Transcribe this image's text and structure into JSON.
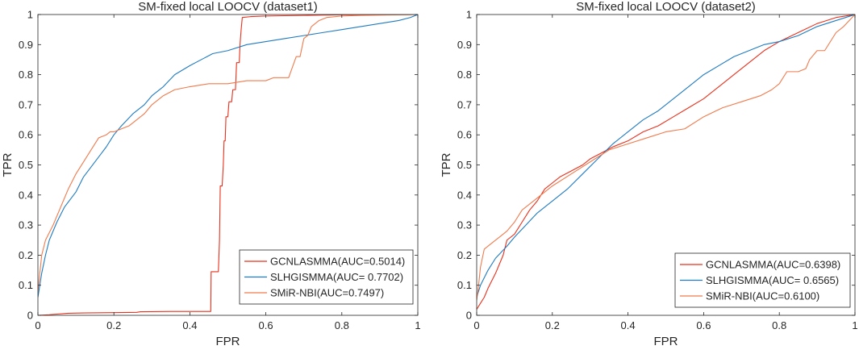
{
  "chart_data": [
    {
      "type": "line",
      "title": "SM-fixed local LOOCV (dataset1)",
      "xlabel": "FPR",
      "ylabel": "TPR",
      "xlim": [
        0,
        1
      ],
      "ylim": [
        0,
        1
      ],
      "x_ticks": [
        "0",
        "0.2",
        "0.4",
        "0.6",
        "0.8",
        "1"
      ],
      "y_ticks": [
        "0",
        "0.1",
        "0.2",
        "0.3",
        "0.4",
        "0.5",
        "0.6",
        "0.7",
        "0.8",
        "0.9",
        "1"
      ],
      "legend_position": "bottom-right",
      "series": [
        {
          "name": "GCNLASMMA(AUC=0.5014)",
          "color": "#e8301c",
          "x": [
            0,
            0.03,
            0.05,
            0.08,
            0.12,
            0.2,
            0.26,
            0.27,
            0.35,
            0.44,
            0.455,
            0.456,
            0.475,
            0.478,
            0.48,
            0.485,
            0.488,
            0.49,
            0.493,
            0.495,
            0.5,
            0.503,
            0.51,
            0.513,
            0.52,
            0.523,
            0.53,
            0.532,
            0.535,
            0.538,
            0.56,
            0.6,
            0.65,
            0.7,
            0.75,
            0.8,
            1
          ],
          "y": [
            0,
            0.002,
            0.004,
            0.007,
            0.008,
            0.009,
            0.01,
            0.012,
            0.013,
            0.013,
            0.013,
            0.145,
            0.145,
            0.25,
            0.43,
            0.43,
            0.5,
            0.58,
            0.58,
            0.66,
            0.66,
            0.71,
            0.71,
            0.75,
            0.75,
            0.84,
            0.84,
            0.9,
            0.95,
            0.99,
            0.993,
            0.995,
            0.996,
            0.997,
            0.998,
            0.999,
            1
          ]
        },
        {
          "name": "SLHGISMMA(AUC= 0.7702)",
          "color": "#1f7bc1",
          "x": [
            0,
            0.005,
            0.01,
            0.02,
            0.03,
            0.05,
            0.07,
            0.1,
            0.12,
            0.15,
            0.18,
            0.2,
            0.22,
            0.25,
            0.28,
            0.3,
            0.33,
            0.36,
            0.4,
            0.43,
            0.46,
            0.5,
            0.55,
            0.6,
            0.65,
            0.7,
            0.75,
            0.8,
            0.85,
            0.9,
            0.95,
            0.98,
            1
          ],
          "y": [
            0.06,
            0.1,
            0.14,
            0.2,
            0.25,
            0.31,
            0.36,
            0.41,
            0.46,
            0.51,
            0.56,
            0.6,
            0.63,
            0.67,
            0.7,
            0.73,
            0.76,
            0.8,
            0.83,
            0.85,
            0.87,
            0.88,
            0.9,
            0.91,
            0.92,
            0.93,
            0.94,
            0.95,
            0.96,
            0.97,
            0.98,
            0.99,
            1
          ]
        },
        {
          "name": "SMiR-NBI(AUC=0.7497)",
          "color": "#f07a4c",
          "x": [
            0,
            0.005,
            0.01,
            0.02,
            0.04,
            0.06,
            0.08,
            0.1,
            0.12,
            0.14,
            0.16,
            0.18,
            0.19,
            0.2,
            0.22,
            0.24,
            0.26,
            0.28,
            0.3,
            0.33,
            0.36,
            0.4,
            0.45,
            0.5,
            0.55,
            0.6,
            0.62,
            0.64,
            0.66,
            0.68,
            0.69,
            0.7,
            0.71,
            0.72,
            0.74,
            0.76,
            0.8,
            0.85,
            0.9,
            0.95,
            1
          ],
          "y": [
            0.08,
            0.14,
            0.2,
            0.25,
            0.3,
            0.36,
            0.42,
            0.47,
            0.51,
            0.55,
            0.59,
            0.6,
            0.61,
            0.61,
            0.62,
            0.63,
            0.65,
            0.67,
            0.7,
            0.73,
            0.75,
            0.76,
            0.77,
            0.77,
            0.78,
            0.78,
            0.79,
            0.79,
            0.79,
            0.86,
            0.86,
            0.92,
            0.93,
            0.96,
            0.98,
            0.99,
            0.995,
            0.997,
            0.998,
            0.999,
            1
          ]
        }
      ]
    },
    {
      "type": "line",
      "title": "SM-fixed local LOOCV (dataset2)",
      "xlabel": "FPR",
      "ylabel": "TPR",
      "xlim": [
        0,
        1
      ],
      "ylim": [
        0,
        1
      ],
      "x_ticks": [
        "0",
        "0.2",
        "0.4",
        "0.6",
        "0.8",
        "1"
      ],
      "y_ticks": [
        "0",
        "0.1",
        "0.2",
        "0.3",
        "0.4",
        "0.5",
        "0.6",
        "0.7",
        "0.8",
        "0.9",
        "1"
      ],
      "legend_position": "bottom-right",
      "series": [
        {
          "name": "GCNLASMMA(AUC=0.6398)",
          "color": "#e8301c",
          "x": [
            0,
            0.01,
            0.02,
            0.03,
            0.05,
            0.07,
            0.08,
            0.1,
            0.12,
            0.14,
            0.16,
            0.18,
            0.2,
            0.22,
            0.25,
            0.28,
            0.3,
            0.33,
            0.36,
            0.4,
            0.44,
            0.48,
            0.52,
            0.56,
            0.6,
            0.64,
            0.68,
            0.72,
            0.76,
            0.8,
            0.85,
            0.9,
            0.95,
            1
          ],
          "y": [
            0.02,
            0.04,
            0.06,
            0.09,
            0.14,
            0.2,
            0.25,
            0.27,
            0.31,
            0.35,
            0.38,
            0.42,
            0.44,
            0.46,
            0.48,
            0.5,
            0.52,
            0.54,
            0.56,
            0.58,
            0.61,
            0.63,
            0.66,
            0.69,
            0.72,
            0.76,
            0.8,
            0.84,
            0.88,
            0.91,
            0.94,
            0.97,
            0.99,
            1
          ]
        },
        {
          "name": "SLHGISMMA(AUC= 0.6565)",
          "color": "#1f7bc1",
          "x": [
            0,
            0.01,
            0.03,
            0.05,
            0.08,
            0.1,
            0.13,
            0.16,
            0.2,
            0.24,
            0.28,
            0.32,
            0.36,
            0.4,
            0.44,
            0.48,
            0.52,
            0.56,
            0.6,
            0.64,
            0.68,
            0.72,
            0.76,
            0.8,
            0.85,
            0.9,
            0.95,
            1
          ],
          "y": [
            0.06,
            0.1,
            0.15,
            0.19,
            0.23,
            0.26,
            0.3,
            0.34,
            0.38,
            0.42,
            0.47,
            0.52,
            0.57,
            0.61,
            0.65,
            0.68,
            0.72,
            0.76,
            0.8,
            0.83,
            0.86,
            0.88,
            0.9,
            0.91,
            0.93,
            0.96,
            0.98,
            1
          ]
        },
        {
          "name": "SMiR-NBI(AUC=0.6100)",
          "color": "#f07a4c",
          "x": [
            0,
            0.005,
            0.01,
            0.02,
            0.04,
            0.06,
            0.08,
            0.1,
            0.12,
            0.15,
            0.18,
            0.2,
            0.25,
            0.3,
            0.35,
            0.4,
            0.45,
            0.5,
            0.55,
            0.6,
            0.65,
            0.7,
            0.75,
            0.78,
            0.8,
            0.82,
            0.85,
            0.87,
            0.88,
            0.9,
            0.92,
            0.95,
            0.97,
            1
          ],
          "y": [
            0.05,
            0.1,
            0.16,
            0.22,
            0.24,
            0.26,
            0.28,
            0.31,
            0.35,
            0.38,
            0.41,
            0.43,
            0.47,
            0.51,
            0.55,
            0.57,
            0.59,
            0.61,
            0.62,
            0.66,
            0.69,
            0.71,
            0.73,
            0.75,
            0.77,
            0.81,
            0.81,
            0.82,
            0.85,
            0.88,
            0.88,
            0.94,
            0.96,
            1
          ]
        }
      ]
    }
  ]
}
